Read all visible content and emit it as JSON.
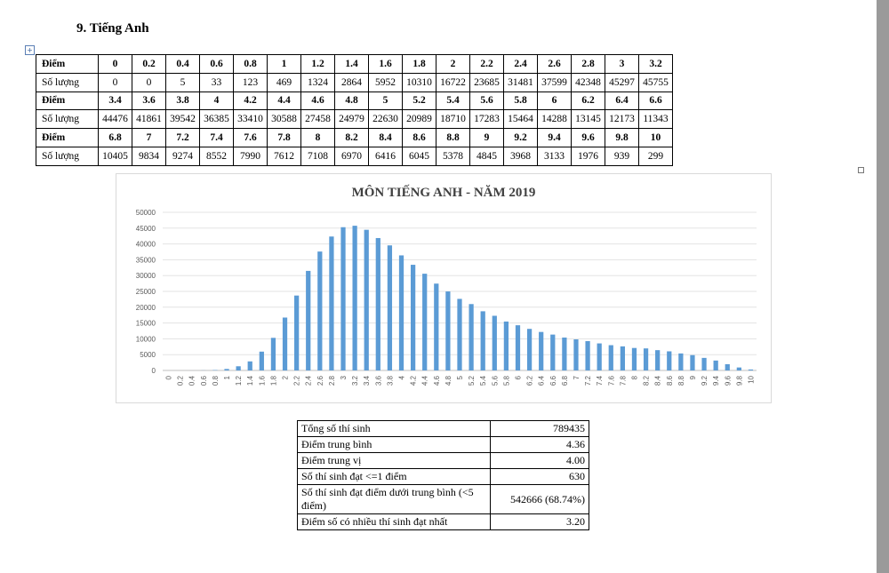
{
  "heading": "9.  Tiếng Anh",
  "score_table": {
    "row_labels": {
      "points": "Điểm",
      "count": "Số lượng"
    },
    "blocks": [
      {
        "points": [
          "0",
          "0.2",
          "0.4",
          "0.6",
          "0.8",
          "1",
          "1.2",
          "1.4",
          "1.6",
          "1.8",
          "2",
          "2.2",
          "2.4",
          "2.6",
          "2.8",
          "3",
          "3.2"
        ],
        "counts": [
          "0",
          "0",
          "5",
          "33",
          "123",
          "469",
          "1324",
          "2864",
          "5952",
          "10310",
          "16722",
          "23685",
          "31481",
          "37599",
          "42348",
          "45297",
          "45755"
        ]
      },
      {
        "points": [
          "3.4",
          "3.6",
          "3.8",
          "4",
          "4.2",
          "4.4",
          "4.6",
          "4.8",
          "5",
          "5.2",
          "5.4",
          "5.6",
          "5.8",
          "6",
          "6.2",
          "6.4",
          "6.6"
        ],
        "counts": [
          "44476",
          "41861",
          "39542",
          "36385",
          "33410",
          "30588",
          "27458",
          "24979",
          "22630",
          "20989",
          "18710",
          "17283",
          "15464",
          "14288",
          "13145",
          "12173",
          "11343"
        ]
      },
      {
        "points": [
          "6.8",
          "7",
          "7.2",
          "7.4",
          "7.6",
          "7.8",
          "8",
          "8.2",
          "8.4",
          "8.6",
          "8.8",
          "9",
          "9.2",
          "9.4",
          "9.6",
          "9.8",
          "10"
        ],
        "counts": [
          "10405",
          "9834",
          "9274",
          "8552",
          "7990",
          "7612",
          "7108",
          "6970",
          "6416",
          "6045",
          "5378",
          "4845",
          "3968",
          "3133",
          "1976",
          "939",
          "299"
        ]
      }
    ]
  },
  "chart_data": {
    "type": "bar",
    "title": "MÔN TIẾNG ANH - NĂM 2019",
    "xlabel": "",
    "ylabel": "",
    "ylim": [
      0,
      50000
    ],
    "yticks": [
      "0",
      "5000",
      "10000",
      "15000",
      "20000",
      "25000",
      "30000",
      "35000",
      "40000",
      "45000",
      "50000"
    ],
    "grid": true,
    "bar_color": "#5b9bd5",
    "categories": [
      "0",
      "0.2",
      "0.4",
      "0.6",
      "0.8",
      "1",
      "1.2",
      "1.4",
      "1.6",
      "1.8",
      "2",
      "2.2",
      "2.4",
      "2.6",
      "2.8",
      "3",
      "3.2",
      "3.4",
      "3.6",
      "3.8",
      "4",
      "4.2",
      "4.4",
      "4.6",
      "4.8",
      "5",
      "5.2",
      "5.4",
      "5.6",
      "5.8",
      "6",
      "6.2",
      "6.4",
      "6.6",
      "6.8",
      "7",
      "7.2",
      "7.4",
      "7.6",
      "7.8",
      "8",
      "8.2",
      "8.4",
      "8.6",
      "8.8",
      "9",
      "9.2",
      "9.4",
      "9.6",
      "9.8",
      "10"
    ],
    "values": [
      0,
      0,
      5,
      33,
      123,
      469,
      1324,
      2864,
      5952,
      10310,
      16722,
      23685,
      31481,
      37599,
      42348,
      45297,
      45755,
      44476,
      41861,
      39542,
      36385,
      33410,
      30588,
      27458,
      24979,
      22630,
      20989,
      18710,
      17283,
      15464,
      14288,
      13145,
      12173,
      11343,
      10405,
      9834,
      9274,
      8552,
      7990,
      7612,
      7108,
      6970,
      6416,
      6045,
      5378,
      4845,
      3968,
      3133,
      1976,
      939,
      299
    ]
  },
  "summary": [
    {
      "label": "Tổng số thí sinh",
      "value": "789435"
    },
    {
      "label": "Điểm trung bình",
      "value": "4.36"
    },
    {
      "label": "Điểm trung vị",
      "value": "4.00"
    },
    {
      "label": "Số thí sinh đạt <=1 điểm",
      "value": "630"
    },
    {
      "label": "Số thí sinh đạt điểm dưới trung bình (<5 điểm)",
      "value": "542666 (68.74%)"
    },
    {
      "label": "Điểm số có nhiều thí sinh đạt nhất",
      "value": "3.20"
    }
  ]
}
